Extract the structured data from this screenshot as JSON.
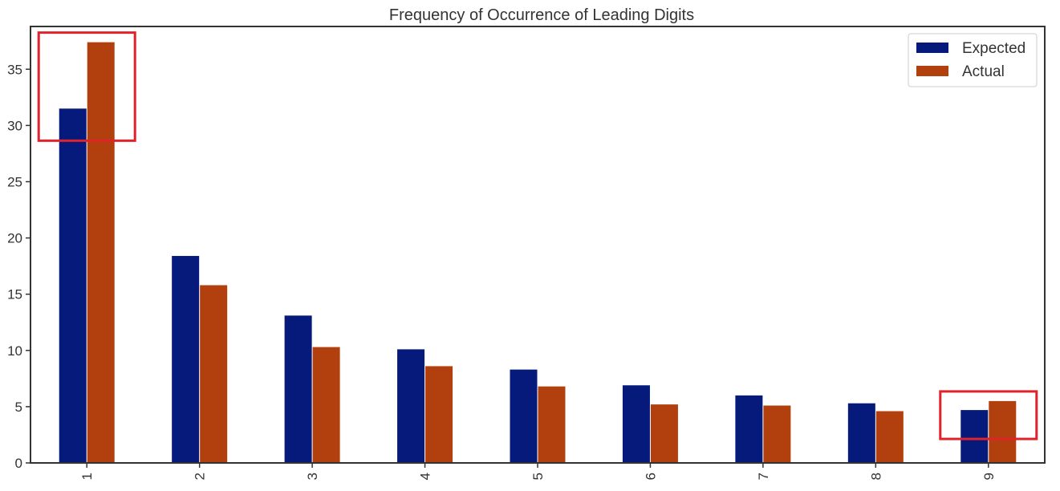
{
  "chart_data": {
    "type": "bar",
    "title": "Frequency of Occurrence of Leading Digits",
    "xlabel": "",
    "ylabel": "",
    "categories": [
      "1",
      "2",
      "3",
      "4",
      "5",
      "6",
      "7",
      "8",
      "9"
    ],
    "series": [
      {
        "name": "Expected",
        "color": "#061a7c",
        "values": [
          31.5,
          18.4,
          13.1,
          10.1,
          8.3,
          6.9,
          6.0,
          5.3,
          4.7
        ]
      },
      {
        "name": "Actual",
        "color": "#b2400e",
        "values": [
          37.4,
          15.8,
          10.3,
          8.6,
          6.8,
          5.2,
          5.1,
          4.6,
          5.5
        ]
      }
    ],
    "ylim": [
      0,
      38.8
    ],
    "yticks": [
      0,
      5,
      10,
      15,
      20,
      25,
      30,
      35
    ],
    "grid": false,
    "legend_position": "top-right",
    "highlighted_categories": [
      "1",
      "9"
    ],
    "highlight_color": "#e0222b"
  }
}
